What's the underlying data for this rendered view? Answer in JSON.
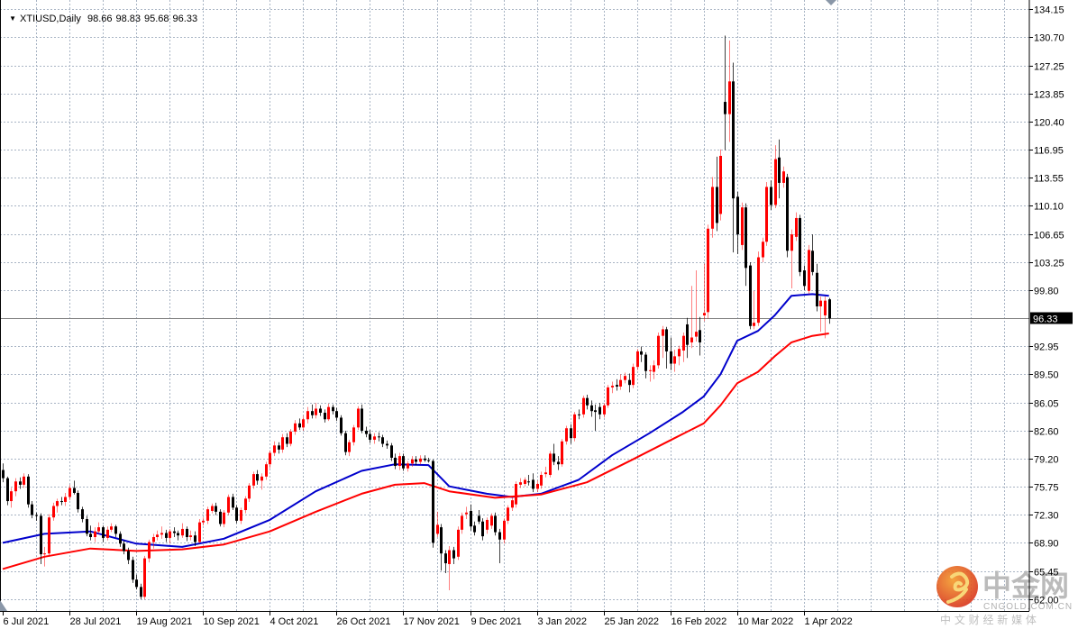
{
  "header": {
    "menu_icon": "triangle-down-icon",
    "symbol": "XTIUSD,Daily",
    "open": "98.66",
    "high": "98.83",
    "low": "95.68",
    "close": "96.33"
  },
  "watermark": {
    "brand_cn": "中金网",
    "domain": "CNGOLD.COM.CN",
    "tagline": "中 文 财 经 新 媒 体"
  },
  "colors": {
    "bull": "#ff0000",
    "bear": "#000000",
    "ma_fast": "#0000cc",
    "ma_slow": "#ff0000",
    "grid": "#a8b4c4",
    "current_price_line": "#808080"
  },
  "chart_data": {
    "type": "candlestick",
    "title": "XTIUSD,Daily",
    "ylim": [
      62.0,
      134.15
    ],
    "grid": true,
    "price_ticks": [
      "134.15",
      "130.70",
      "127.25",
      "123.85",
      "120.40",
      "116.95",
      "113.55",
      "110.10",
      "106.65",
      "103.25",
      "99.80",
      "92.95",
      "89.50",
      "86.05",
      "82.60",
      "79.20",
      "75.75",
      "72.30",
      "68.90",
      "65.45",
      "62.00"
    ],
    "current_price": "96.33",
    "date_labels": [
      {
        "label": "6 Jul 2021",
        "bar": 0
      },
      {
        "label": "28 Jul 2021",
        "bar": 16
      },
      {
        "label": "19 Aug 2021",
        "bar": 32
      },
      {
        "label": "10 Sep 2021",
        "bar": 48
      },
      {
        "label": "4 Oct 2021",
        "bar": 64
      },
      {
        "label": "26 Oct 2021",
        "bar": 80
      },
      {
        "label": "17 Nov 2021",
        "bar": 96
      },
      {
        "label": "9 Dec 2021",
        "bar": 112
      },
      {
        "label": "3 Jan 2022",
        "bar": 128
      },
      {
        "label": "25 Jan 2022",
        "bar": 144
      },
      {
        "label": "16 Feb 2022",
        "bar": 160
      },
      {
        "label": "10 Mar 2022",
        "bar": 176
      },
      {
        "label": "1 Apr 2022",
        "bar": 192
      }
    ],
    "candles_format": [
      "open",
      "high",
      "low",
      "close"
    ],
    "candles": [
      [
        77.8,
        78.6,
        76.3,
        76.8
      ],
      [
        76.8,
        77.0,
        73.5,
        74.0
      ],
      [
        74.0,
        75.6,
        73.2,
        75.2
      ],
      [
        75.2,
        76.8,
        74.6,
        76.4
      ],
      [
        76.4,
        76.9,
        75.5,
        76.0
      ],
      [
        76.0,
        77.4,
        75.6,
        77.0
      ],
      [
        77.0,
        77.3,
        73.2,
        73.6
      ],
      [
        73.6,
        74.0,
        71.9,
        72.3
      ],
      [
        72.3,
        72.6,
        71.6,
        72.2
      ],
      [
        72.2,
        72.5,
        66.3,
        67.5
      ],
      [
        67.5,
        68.4,
        66.0,
        67.6
      ],
      [
        67.6,
        72.4,
        67.2,
        72.0
      ],
      [
        72.0,
        73.8,
        71.6,
        73.4
      ],
      [
        73.4,
        74.3,
        72.6,
        74.0
      ],
      [
        74.0,
        74.5,
        73.5,
        73.9
      ],
      [
        73.9,
        75.0,
        73.4,
        74.5
      ],
      [
        74.5,
        76.0,
        74.1,
        75.6
      ],
      [
        75.6,
        76.5,
        74.8,
        75.0
      ],
      [
        75.0,
        75.3,
        72.6,
        73.0
      ],
      [
        73.0,
        73.3,
        71.4,
        71.8
      ],
      [
        71.8,
        72.2,
        69.7,
        70.0
      ],
      [
        70.0,
        71.0,
        69.2,
        69.6
      ],
      [
        69.6,
        70.8,
        69.0,
        70.3
      ],
      [
        70.3,
        71.4,
        70.0,
        70.8
      ],
      [
        70.8,
        71.0,
        69.0,
        69.5
      ],
      [
        69.5,
        70.9,
        69.2,
        70.5
      ],
      [
        70.5,
        71.3,
        70.2,
        70.9
      ],
      [
        70.9,
        71.1,
        69.6,
        70.0
      ],
      [
        70.0,
        70.3,
        68.4,
        68.8
      ],
      [
        68.8,
        69.2,
        67.5,
        67.9
      ],
      [
        67.9,
        68.3,
        66.3,
        66.8
      ],
      [
        66.8,
        67.2,
        64.0,
        64.4
      ],
      [
        64.4,
        65.0,
        63.2,
        63.5
      ],
      [
        63.5,
        63.9,
        62.0,
        62.3
      ],
      [
        62.3,
        67.3,
        62.0,
        67.0
      ],
      [
        67.0,
        69.3,
        66.5,
        69.0
      ],
      [
        69.0,
        70.0,
        68.2,
        69.6
      ],
      [
        69.6,
        70.4,
        69.2,
        69.9
      ],
      [
        69.9,
        70.9,
        69.4,
        70.1
      ],
      [
        70.1,
        70.5,
        69.0,
        69.5
      ],
      [
        69.5,
        70.6,
        68.8,
        70.3
      ],
      [
        70.3,
        70.8,
        69.6,
        70.1
      ],
      [
        70.1,
        70.4,
        69.2,
        69.8
      ],
      [
        69.8,
        71.3,
        69.5,
        70.6
      ],
      [
        70.6,
        70.9,
        69.1,
        69.6
      ],
      [
        69.6,
        70.4,
        69.2,
        69.8
      ],
      [
        69.8,
        70.3,
        68.5,
        69.0
      ],
      [
        69.0,
        71.8,
        68.8,
        71.4
      ],
      [
        71.4,
        72.0,
        71.0,
        71.6
      ],
      [
        71.6,
        73.3,
        71.2,
        73.0
      ],
      [
        72.8,
        73.7,
        72.5,
        73.4
      ],
      [
        73.4,
        73.8,
        72.3,
        72.7
      ],
      [
        72.7,
        73.0,
        70.9,
        71.2
      ],
      [
        71.2,
        72.9,
        70.8,
        72.6
      ],
      [
        72.6,
        74.8,
        72.3,
        74.5
      ],
      [
        74.5,
        74.9,
        72.9,
        73.2
      ],
      [
        73.2,
        73.5,
        71.3,
        71.6
      ],
      [
        71.6,
        73.2,
        71.2,
        72.9
      ],
      [
        72.9,
        74.6,
        72.5,
        74.3
      ],
      [
        74.3,
        76.2,
        73.9,
        75.9
      ],
      [
        75.9,
        77.6,
        75.5,
        77.3
      ],
      [
        77.3,
        77.8,
        76.0,
        76.5
      ],
      [
        76.5,
        77.4,
        75.4,
        77.0
      ],
      [
        77.0,
        78.8,
        76.6,
        78.5
      ],
      [
        78.5,
        80.2,
        78.0,
        79.9
      ],
      [
        79.9,
        81.3,
        79.5,
        80.8
      ],
      [
        80.8,
        81.2,
        79.8,
        80.3
      ],
      [
        80.3,
        82.2,
        79.9,
        81.8
      ],
      [
        81.8,
        82.3,
        80.6,
        81.0
      ],
      [
        81.0,
        82.8,
        80.7,
        82.5
      ],
      [
        82.5,
        83.9,
        82.1,
        83.5
      ],
      [
        83.5,
        84.1,
        82.7,
        83.0
      ],
      [
        83.0,
        84.4,
        82.6,
        84.0
      ],
      [
        84.0,
        85.5,
        83.5,
        85.0
      ],
      [
        85.0,
        85.8,
        84.1,
        84.5
      ],
      [
        84.5,
        86.0,
        84.1,
        85.3
      ],
      [
        85.3,
        85.7,
        84.4,
        84.8
      ],
      [
        84.8,
        85.2,
        83.6,
        84.0
      ],
      [
        84.0,
        85.9,
        83.8,
        85.5
      ],
      [
        85.5,
        85.8,
        84.6,
        85.0
      ],
      [
        85.0,
        85.4,
        83.8,
        84.2
      ],
      [
        84.2,
        84.5,
        82.0,
        82.3
      ],
      [
        82.3,
        82.6,
        79.6,
        80.0
      ],
      [
        80.0,
        81.5,
        79.5,
        81.2
      ],
      [
        81.2,
        83.3,
        80.8,
        83.0
      ],
      [
        83.0,
        85.6,
        82.7,
        85.3
      ],
      [
        85.3,
        85.8,
        82.3,
        82.6
      ],
      [
        82.6,
        83.1,
        81.8,
        82.2
      ],
      [
        82.2,
        82.7,
        81.1,
        81.5
      ],
      [
        81.5,
        82.3,
        81.0,
        81.9
      ],
      [
        81.9,
        82.4,
        81.3,
        81.8
      ],
      [
        81.8,
        82.1,
        80.6,
        81.0
      ],
      [
        81.0,
        81.4,
        80.4,
        80.8
      ],
      [
        80.8,
        81.1,
        78.9,
        79.3
      ],
      [
        79.3,
        79.8,
        77.9,
        78.3
      ],
      [
        78.3,
        79.9,
        77.8,
        79.5
      ],
      [
        79.5,
        79.8,
        77.7,
        78.0
      ],
      [
        78.0,
        78.9,
        77.6,
        78.6
      ],
      [
        78.6,
        79.5,
        78.2,
        79.1
      ],
      [
        79.1,
        79.5,
        78.4,
        78.8
      ],
      [
        78.8,
        79.6,
        78.5,
        79.2
      ],
      [
        79.2,
        79.6,
        78.8,
        79.0
      ],
      [
        79.0,
        79.3,
        78.7,
        78.9
      ],
      [
        78.9,
        79.1,
        68.3,
        68.9
      ],
      [
        70.0,
        72.7,
        69.6,
        71.1
      ],
      [
        70.8,
        71.2,
        65.5,
        67.6
      ],
      [
        67.6,
        68.0,
        65.2,
        66.4
      ],
      [
        66.3,
        68.5,
        63.1,
        68.0
      ],
      [
        68.0,
        68.4,
        66.3,
        67.0
      ],
      [
        67.2,
        70.9,
        66.8,
        70.5
      ],
      [
        70.5,
        72.6,
        70.0,
        72.2
      ],
      [
        72.4,
        73.3,
        71.8,
        72.6
      ],
      [
        72.8,
        73.6,
        70.4,
        70.9
      ],
      [
        71.0,
        71.5,
        69.8,
        70.2
      ],
      [
        72.2,
        72.9,
        71.2,
        71.5
      ],
      [
        71.5,
        71.9,
        69.2,
        69.7
      ],
      [
        70.5,
        72.0,
        70.0,
        71.7
      ],
      [
        71.0,
        72.5,
        70.6,
        72.2
      ],
      [
        72.2,
        72.6,
        69.8,
        70.2
      ],
      [
        70.2,
        70.6,
        66.4,
        69.3
      ],
      [
        69.3,
        71.9,
        68.8,
        71.6
      ],
      [
        71.6,
        73.5,
        71.2,
        73.2
      ],
      [
        73.2,
        74.4,
        72.8,
        74.1
      ],
      [
        73.6,
        76.4,
        73.2,
        76.1
      ],
      [
        76.0,
        76.8,
        75.6,
        76.3
      ],
      [
        76.1,
        76.9,
        75.8,
        76.6
      ],
      [
        76.4,
        77.2,
        75.9,
        76.3
      ],
      [
        76.6,
        77.4,
        75.1,
        75.5
      ],
      [
        75.5,
        76.5,
        75.1,
        76.1
      ],
      [
        75.9,
        77.6,
        75.5,
        77.2
      ],
      [
        77.3,
        78.2,
        76.9,
        77.5
      ],
      [
        77.2,
        80.1,
        76.9,
        79.8
      ],
      [
        79.8,
        81.0,
        78.4,
        78.8
      ],
      [
        78.8,
        79.5,
        77.8,
        78.5
      ],
      [
        78.5,
        81.6,
        78.2,
        81.3
      ],
      [
        81.3,
        83.2,
        80.9,
        82.9
      ],
      [
        82.9,
        83.4,
        81.0,
        81.7
      ],
      [
        81.7,
        84.9,
        81.3,
        84.6
      ],
      [
        84.6,
        85.2,
        84.0,
        84.5
      ],
      [
        84.6,
        86.9,
        84.2,
        86.6
      ],
      [
        86.6,
        87.0,
        85.2,
        85.7
      ],
      [
        85.7,
        86.3,
        84.3,
        85.0
      ],
      [
        85.1,
        85.8,
        82.6,
        84.9
      ],
      [
        85.5,
        86.0,
        84.0,
        84.6
      ],
      [
        84.6,
        86.0,
        84.2,
        85.7
      ],
      [
        85.7,
        88.2,
        85.4,
        87.9
      ],
      [
        87.9,
        88.6,
        87.2,
        88.1
      ],
      [
        88.2,
        88.9,
        87.5,
        88.0
      ],
      [
        88.0,
        89.5,
        87.6,
        88.8
      ],
      [
        88.8,
        89.7,
        88.4,
        89.3
      ],
      [
        88.8,
        89.6,
        87.3,
        88.2
      ],
      [
        88.2,
        90.8,
        87.8,
        90.4
      ],
      [
        90.4,
        92.6,
        90.0,
        92.3
      ],
      [
        92.3,
        92.9,
        91.0,
        91.9
      ],
      [
        91.9,
        92.2,
        89.0,
        89.9
      ],
      [
        89.9,
        90.6,
        88.6,
        90.0
      ],
      [
        89.8,
        91.2,
        88.9,
        90.6
      ],
      [
        90.6,
        94.6,
        90.2,
        94.2
      ],
      [
        94.2,
        95.4,
        91.5,
        95.0
      ],
      [
        95.0,
        95.3,
        90.2,
        92.3
      ],
      [
        92.3,
        94.0,
        90.0,
        90.8
      ],
      [
        90.8,
        92.5,
        89.8,
        91.7
      ],
      [
        91.7,
        93.0,
        90.6,
        92.6
      ],
      [
        92.4,
        94.6,
        91.0,
        94.2
      ],
      [
        95.6,
        96.4,
        91.5,
        93.1
      ],
      [
        93.4,
        100.3,
        92.7,
        94.0
      ],
      [
        94.1,
        102.2,
        93.5,
        94.7
      ],
      [
        94.9,
        96.5,
        91.8,
        93.4
      ],
      [
        96.7,
        103.0,
        96.0,
        97.0
      ],
      [
        97.1,
        107.8,
        96.3,
        107.3
      ],
      [
        107.3,
        113.6,
        106.2,
        112.4
      ],
      [
        112.4,
        116.1,
        107.0,
        108.0
      ],
      [
        109.1,
        117.0,
        108.3,
        116.2
      ],
      [
        122.8,
        130.9,
        116.9,
        121.3
      ],
      [
        121.3,
        130.3,
        117.9,
        125.3
      ],
      [
        125.3,
        127.6,
        104.4,
        111.0
      ],
      [
        111.2,
        111.8,
        104.2,
        106.6
      ],
      [
        105.3,
        110.5,
        104.7,
        109.9
      ],
      [
        109.9,
        110.4,
        100.3,
        102.5
      ],
      [
        102.8,
        103.2,
        95.0,
        95.4
      ],
      [
        95.4,
        99.7,
        95.0,
        95.8
      ],
      [
        95.8,
        104.5,
        95.4,
        103.8
      ],
      [
        103.8,
        106.2,
        103.2,
        105.7
      ],
      [
        105.7,
        113.0,
        105.2,
        112.4
      ],
      [
        112.4,
        113.2,
        109.6,
        110.2
      ],
      [
        110.2,
        117.5,
        109.8,
        115.8
      ],
      [
        116.0,
        118.2,
        111.0,
        112.9
      ],
      [
        112.9,
        114.9,
        112.3,
        114.3
      ],
      [
        113.6,
        114.0,
        103.8,
        104.6
      ],
      [
        104.6,
        107.2,
        100.0,
        106.6
      ],
      [
        106.3,
        109.3,
        105.8,
        108.6
      ],
      [
        108.6,
        109.0,
        101.5,
        102.0
      ],
      [
        102.2,
        102.8,
        99.8,
        100.3
      ],
      [
        99.7,
        105.3,
        99.3,
        104.7
      ],
      [
        104.6,
        106.6,
        101.6,
        102.0
      ],
      [
        101.9,
        103.0,
        97.2,
        97.8
      ],
      [
        97.8,
        99.0,
        94.7,
        98.5
      ],
      [
        96.7,
        99.0,
        93.9,
        98.5
      ],
      [
        98.66,
        98.83,
        95.68,
        96.33
      ]
    ],
    "series": [
      {
        "name": "MA fast",
        "color": "#0000cc",
        "points": [
          [
            0,
            68.9
          ],
          [
            10,
            70.0
          ],
          [
            21,
            70.3
          ],
          [
            32,
            68.8
          ],
          [
            43,
            68.4
          ],
          [
            53,
            69.4
          ],
          [
            64,
            71.7
          ],
          [
            75,
            75.2
          ],
          [
            86,
            77.7
          ],
          [
            94,
            78.5
          ],
          [
            102,
            78.4
          ],
          [
            107,
            75.8
          ],
          [
            116,
            74.9
          ],
          [
            122,
            74.5
          ],
          [
            129,
            74.9
          ],
          [
            138,
            76.6
          ],
          [
            146,
            79.6
          ],
          [
            155,
            82.3
          ],
          [
            163,
            84.9
          ],
          [
            168,
            86.8
          ],
          [
            172,
            89.5
          ],
          [
            176,
            93.6
          ],
          [
            181,
            94.8
          ],
          [
            185,
            96.7
          ],
          [
            189,
            99.1
          ],
          [
            194,
            99.3
          ],
          [
            198,
            99.1
          ]
        ]
      },
      {
        "name": "MA slow",
        "color": "#ff0000",
        "points": [
          [
            0,
            65.7
          ],
          [
            10,
            67.2
          ],
          [
            21,
            68.2
          ],
          [
            32,
            67.9
          ],
          [
            43,
            68.1
          ],
          [
            53,
            68.7
          ],
          [
            64,
            70.3
          ],
          [
            75,
            72.7
          ],
          [
            86,
            74.9
          ],
          [
            94,
            76.0
          ],
          [
            101,
            76.2
          ],
          [
            107,
            75.2
          ],
          [
            118,
            74.4
          ],
          [
            129,
            74.8
          ],
          [
            140,
            76.3
          ],
          [
            151,
            79.1
          ],
          [
            161,
            81.7
          ],
          [
            168,
            83.5
          ],
          [
            172,
            85.7
          ],
          [
            176,
            88.4
          ],
          [
            181,
            89.8
          ],
          [
            185,
            91.7
          ],
          [
            189,
            93.4
          ],
          [
            194,
            94.2
          ],
          [
            198,
            94.5
          ]
        ]
      }
    ]
  }
}
